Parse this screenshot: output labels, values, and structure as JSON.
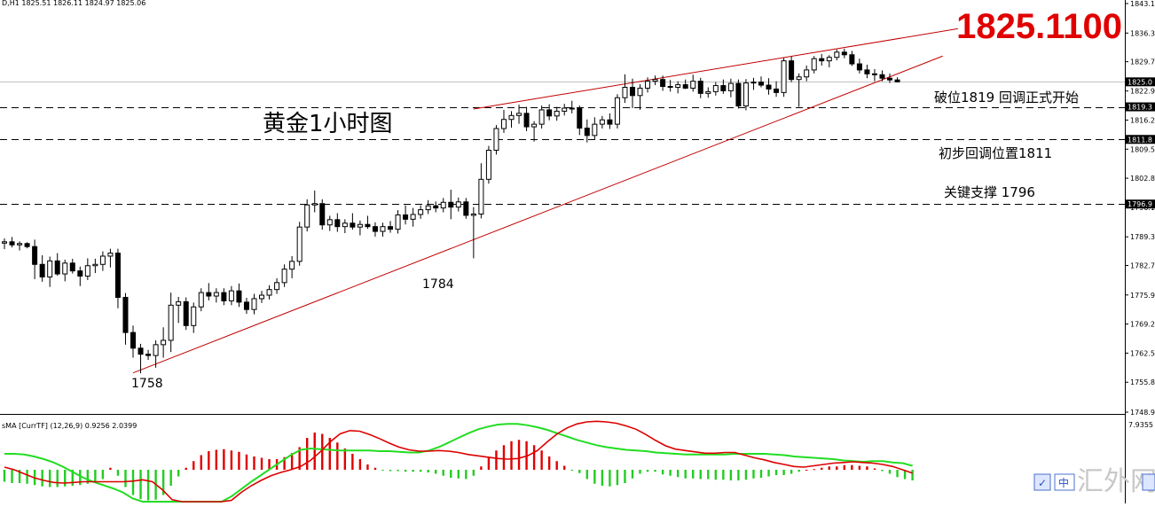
{
  "header": {
    "symbol_info": "D,H1  1825.51 1826.11 1824.97 1825.06",
    "current_price_big": "1825.1100",
    "indicator_label": "sMA [CurrTF] (12,26,9) 0.9256 2.0399"
  },
  "annotations": {
    "chart_title": "黄金1小时图",
    "break_label": "破位1819  回调正式开始",
    "pullback_label": "初步回调位置1811",
    "support_label": "关键支撑 1796",
    "low1_label": "1758",
    "low2_label": "1784"
  },
  "price_axis": {
    "ticks": [
      "1843.10",
      "1836.30",
      "1829.70",
      "1822.95",
      "1816.25",
      "1809.55",
      "1802.85",
      "1796.15",
      "1789.35",
      "1782.75",
      "1775.95",
      "1769.25",
      "1762.55",
      "1755.85",
      "1748.95"
    ],
    "current_label": "1825.0",
    "break_label": "1819.3",
    "pullback_label": "1811.8",
    "support_label": "1796.9"
  },
  "indicator_axis": {
    "top_label": "7.9355"
  },
  "watermark": {
    "text": "汇外网",
    "buttons": [
      "中"
    ]
  },
  "colors": {
    "trendline": "#c00000",
    "hist_up": "#e00000",
    "hist_down": "#22cc22",
    "signal_red": "#dd0000",
    "signal_green": "#22dd22",
    "big_price": "#e00000"
  },
  "chart_data": {
    "type": "candlestick",
    "timeframe": "H1",
    "ylim": [
      1748.95,
      1843.1
    ],
    "candles": [
      [
        1787.9,
        1789.0,
        1786.5,
        1788.2
      ],
      [
        1788.2,
        1789.3,
        1786.9,
        1787.5
      ],
      [
        1787.5,
        1788.3,
        1786.2,
        1787.8
      ],
      [
        1787.8,
        1788.1,
        1786.7,
        1787.1
      ],
      [
        1787.1,
        1788.7,
        1779.6,
        1783.0
      ],
      [
        1783.0,
        1785.1,
        1779.0,
        1780.1
      ],
      [
        1780.1,
        1784.8,
        1777.8,
        1783.8
      ],
      [
        1783.8,
        1785.6,
        1780.4,
        1780.8
      ],
      [
        1780.8,
        1784.1,
        1779.1,
        1783.3
      ],
      [
        1783.3,
        1784.3,
        1780.9,
        1781.5
      ],
      [
        1781.5,
        1782.5,
        1778.0,
        1780.3
      ],
      [
        1780.3,
        1784.4,
        1779.4,
        1782.7
      ],
      [
        1782.7,
        1784.3,
        1781.0,
        1783.0
      ],
      [
        1783.0,
        1786.0,
        1781.5,
        1784.9
      ],
      [
        1784.9,
        1786.6,
        1782.3,
        1785.6
      ],
      [
        1785.6,
        1786.6,
        1772.9,
        1775.4
      ],
      [
        1775.4,
        1776.4,
        1764.5,
        1767.3
      ],
      [
        1767.3,
        1768.9,
        1761.5,
        1763.7
      ],
      [
        1763.7,
        1764.7,
        1757.9,
        1762.3
      ],
      [
        1762.3,
        1763.3,
        1761.0,
        1762.0
      ],
      [
        1762.0,
        1765.5,
        1759.2,
        1764.5
      ],
      [
        1764.5,
        1768.5,
        1761.5,
        1765.5
      ],
      [
        1765.5,
        1776.5,
        1762.8,
        1773.6
      ],
      [
        1773.6,
        1775.5,
        1769.5,
        1774.4
      ],
      [
        1774.4,
        1775.4,
        1767.9,
        1768.9
      ],
      [
        1768.9,
        1774.2,
        1767.2,
        1773.2
      ],
      [
        1773.2,
        1777.5,
        1772.2,
        1776.5
      ],
      [
        1776.5,
        1778.7,
        1774.7,
        1775.7
      ],
      [
        1775.7,
        1777.5,
        1774.2,
        1776.5
      ],
      [
        1776.5,
        1777.5,
        1773.6,
        1774.6
      ],
      [
        1774.6,
        1778.0,
        1773.6,
        1776.9
      ],
      [
        1776.9,
        1778.6,
        1773.2,
        1774.3
      ],
      [
        1774.3,
        1775.3,
        1771.6,
        1772.6
      ],
      [
        1772.6,
        1776.2,
        1771.5,
        1775.1
      ],
      [
        1775.1,
        1776.9,
        1774.1,
        1775.9
      ],
      [
        1775.9,
        1778.2,
        1774.9,
        1777.2
      ],
      [
        1777.2,
        1779.8,
        1776.2,
        1778.8
      ],
      [
        1778.8,
        1783.0,
        1777.8,
        1781.9
      ],
      [
        1781.9,
        1784.9,
        1779.8,
        1783.7
      ],
      [
        1783.7,
        1792.8,
        1782.7,
        1791.6
      ],
      [
        1791.6,
        1798.0,
        1790.6,
        1796.7
      ],
      [
        1796.7,
        1800.0,
        1795.0,
        1797.0
      ],
      [
        1797.0,
        1798.0,
        1791.0,
        1792.1
      ],
      [
        1792.1,
        1794.2,
        1790.7,
        1793.3
      ],
      [
        1793.3,
        1794.8,
        1790.5,
        1791.7
      ],
      [
        1791.7,
        1793.4,
        1790.2,
        1792.5
      ],
      [
        1792.5,
        1794.8,
        1791.0,
        1791.6
      ],
      [
        1791.6,
        1793.1,
        1789.7,
        1792.2
      ],
      [
        1792.2,
        1794.2,
        1791.2,
        1791.7
      ],
      [
        1791.7,
        1792.7,
        1789.4,
        1790.6
      ],
      [
        1790.6,
        1792.6,
        1789.4,
        1791.7
      ],
      [
        1791.7,
        1793.0,
        1790.3,
        1791.1
      ],
      [
        1791.1,
        1795.5,
        1790.1,
        1794.4
      ],
      [
        1794.4,
        1796.6,
        1792.2,
        1793.4
      ],
      [
        1793.4,
        1796.0,
        1791.7,
        1794.5
      ],
      [
        1794.5,
        1796.6,
        1793.5,
        1795.6
      ],
      [
        1795.6,
        1797.8,
        1794.6,
        1796.5
      ],
      [
        1796.5,
        1797.5,
        1795.0,
        1796.0
      ],
      [
        1796.0,
        1798.3,
        1795.0,
        1797.3
      ],
      [
        1797.3,
        1800.2,
        1793.4,
        1796.2
      ],
      [
        1796.2,
        1798.4,
        1795.2,
        1797.4
      ],
      [
        1797.4,
        1798.3,
        1793.5,
        1794.3
      ],
      [
        1794.3,
        1796.2,
        1784.4,
        1794.6
      ],
      [
        1794.6,
        1806.3,
        1793.6,
        1802.6
      ],
      [
        1802.6,
        1810.3,
        1801.6,
        1809.3
      ],
      [
        1809.3,
        1815.1,
        1808.3,
        1814.3
      ],
      [
        1814.3,
        1818.6,
        1813.3,
        1816.4
      ],
      [
        1816.4,
        1818.3,
        1814.5,
        1817.3
      ],
      [
        1817.3,
        1819.8,
        1815.4,
        1817.8
      ],
      [
        1817.8,
        1819.3,
        1813.7,
        1814.7
      ],
      [
        1814.7,
        1816.0,
        1811.3,
        1815.3
      ],
      [
        1815.3,
        1819.6,
        1814.3,
        1818.6
      ],
      [
        1818.6,
        1819.9,
        1816.2,
        1817.2
      ],
      [
        1817.2,
        1819.3,
        1816.1,
        1818.3
      ],
      [
        1818.3,
        1820.0,
        1817.3,
        1819.0
      ],
      [
        1819.0,
        1820.7,
        1817.8,
        1818.9
      ],
      [
        1818.9,
        1819.6,
        1812.8,
        1814.4
      ],
      [
        1814.4,
        1816.4,
        1811.1,
        1812.7
      ],
      [
        1812.7,
        1816.9,
        1811.7,
        1815.3
      ],
      [
        1815.3,
        1817.2,
        1814.3,
        1816.3
      ],
      [
        1816.3,
        1817.8,
        1814.2,
        1815.3
      ],
      [
        1815.3,
        1822.2,
        1814.3,
        1821.4
      ],
      [
        1821.4,
        1826.8,
        1820.2,
        1823.8
      ],
      [
        1823.8,
        1825.8,
        1819.0,
        1821.9
      ],
      [
        1821.9,
        1824.5,
        1818.6,
        1823.6
      ],
      [
        1823.6,
        1826.1,
        1822.6,
        1825.2
      ],
      [
        1825.2,
        1826.5,
        1824.3,
        1825.6
      ],
      [
        1825.6,
        1826.5,
        1823.0,
        1824.0
      ],
      [
        1824.0,
        1825.5,
        1822.8,
        1823.8
      ],
      [
        1823.8,
        1825.2,
        1822.4,
        1824.4
      ],
      [
        1824.4,
        1825.6,
        1823.4,
        1823.6
      ],
      [
        1823.6,
        1826.7,
        1822.8,
        1825.2
      ],
      [
        1825.2,
        1826.0,
        1821.3,
        1822.4
      ],
      [
        1822.4,
        1823.8,
        1821.4,
        1822.8
      ],
      [
        1822.8,
        1825.0,
        1821.9,
        1824.2
      ],
      [
        1824.2,
        1825.6,
        1822.3,
        1823.0
      ],
      [
        1823.0,
        1825.8,
        1821.5,
        1824.7
      ],
      [
        1824.7,
        1825.6,
        1818.9,
        1819.5
      ],
      [
        1819.5,
        1825.7,
        1818.5,
        1824.8
      ],
      [
        1824.8,
        1826.0,
        1823.2,
        1825.0
      ],
      [
        1825.0,
        1826.3,
        1823.8,
        1824.3
      ],
      [
        1824.3,
        1825.9,
        1822.1,
        1823.4
      ],
      [
        1823.4,
        1825.2,
        1821.6,
        1822.6
      ],
      [
        1822.6,
        1830.6,
        1821.6,
        1829.9
      ],
      [
        1829.9,
        1830.9,
        1825.0,
        1825.6
      ],
      [
        1825.6,
        1827.0,
        1819.3,
        1826.2
      ],
      [
        1826.2,
        1828.8,
        1825.2,
        1827.8
      ],
      [
        1827.8,
        1831.0,
        1827.0,
        1830.4
      ],
      [
        1830.4,
        1831.5,
        1828.8,
        1829.9
      ],
      [
        1829.9,
        1831.2,
        1828.4,
        1830.7
      ],
      [
        1830.7,
        1832.5,
        1830.0,
        1831.9
      ],
      [
        1831.9,
        1832.7,
        1830.5,
        1831.3
      ],
      [
        1831.3,
        1832.2,
        1828.7,
        1829.2
      ],
      [
        1829.2,
        1830.4,
        1827.0,
        1827.8
      ],
      [
        1827.8,
        1829.0,
        1825.9,
        1826.9
      ],
      [
        1826.9,
        1828.0,
        1825.2,
        1826.7
      ],
      [
        1826.7,
        1827.7,
        1825.2,
        1825.9
      ],
      [
        1825.9,
        1827.0,
        1824.8,
        1825.5
      ],
      [
        1825.5,
        1826.1,
        1824.9,
        1825.06
      ]
    ],
    "levels": [
      1819.3,
      1811.8,
      1796.9
    ],
    "current_price": 1825.06,
    "trendlines": [
      {
        "from": [
          17,
          1758.0
        ],
        "to": [
          124,
          1831.0
        ]
      },
      {
        "from": [
          62,
          1818.8
        ],
        "to": [
          126,
          1837.3
        ]
      }
    ],
    "indicator": {
      "type": "osma",
      "params": [
        12,
        26,
        9
      ],
      "ylim": [
        -8,
        8
      ],
      "histogram": [
        -1.8,
        -2.0,
        -2.0,
        -2.1,
        -2.3,
        -2.5,
        -2.6,
        -2.6,
        -2.5,
        -2.4,
        -2.3,
        -2.1,
        -1.9,
        -1.4,
        0.3,
        -0.9,
        -2.6,
        -3.8,
        -4.4,
        -4.6,
        -4.5,
        -3.8,
        -2.4,
        -1.0,
        0.3,
        1.3,
        2.2,
        2.8,
        3.0,
        3.1,
        2.9,
        2.7,
        2.3,
        2.0,
        1.8,
        1.6,
        1.6,
        1.9,
        2.5,
        3.4,
        4.8,
        5.6,
        5.4,
        4.8,
        4.1,
        3.2,
        2.4,
        1.6,
        0.8,
        0.3,
        -0.1,
        -0.2,
        -0.2,
        -0.3,
        -0.3,
        -0.3,
        -0.4,
        -0.6,
        -0.9,
        -1.2,
        -1.3,
        -1.4,
        -0.9,
        0.5,
        1.8,
        2.9,
        3.7,
        4.3,
        4.5,
        4.3,
        3.7,
        2.9,
        2.0,
        1.3,
        0.6,
        -0.1,
        -0.5,
        -1.4,
        -2.1,
        -2.4,
        -2.5,
        -2.3,
        -2.0,
        -1.3,
        -0.6,
        -0.3,
        -0.3,
        -0.7,
        -0.9,
        -1.1,
        -1.3,
        -1.3,
        -1.4,
        -1.4,
        -1.5,
        -1.5,
        -1.6,
        -1.6,
        -1.5,
        -1.3,
        -1.2,
        -1.0,
        -0.8,
        -0.8,
        -0.6,
        -0.3,
        0.0,
        0.1,
        0.3,
        0.5,
        0.5,
        0.7,
        0.7,
        0.6,
        0.5,
        0.2,
        -0.2,
        -0.6,
        -1.1,
        -1.4,
        -1.6
      ],
      "line_red": [
        0.4,
        0.0,
        -0.6,
        -1.2,
        -1.6,
        -1.9,
        -2.0,
        -1.9,
        -1.8,
        -1.8,
        -1.8,
        -1.8,
        -1.8,
        -1.7,
        -1.5,
        -1.8,
        -3.0,
        -4.5,
        -5.9,
        -6.6,
        -6.8,
        -6.6,
        -5.8,
        -4.6,
        -3.4,
        -2.4,
        -1.6,
        -0.9,
        -0.4,
        0.0,
        0.5,
        1.4,
        2.7,
        4.2,
        5.4,
        5.9,
        5.8,
        5.3,
        4.7,
        4.0,
        3.4,
        3.0,
        2.8,
        2.8,
        2.9,
        2.8,
        2.6,
        2.3,
        2.1,
        1.9,
        1.7,
        1.6,
        1.7,
        2.1,
        2.9,
        4.2,
        5.4,
        6.3,
        6.9,
        7.2,
        7.3,
        7.2,
        7.0,
        6.6,
        6.1,
        5.3,
        4.4,
        3.6,
        3.1,
        2.9,
        2.7,
        2.5,
        2.5,
        2.6,
        2.6,
        2.2,
        1.8,
        1.5,
        1.1,
        0.8,
        0.5,
        0.4,
        0.6,
        0.8,
        1.0,
        1.1,
        1.2,
        1.1,
        1.0,
        0.8,
        0.5,
        0.0,
        -0.5
      ],
      "line_green": [
        2.4,
        2.4,
        2.3,
        2.0,
        1.6,
        1.1,
        0.4,
        -0.4,
        -1.2,
        -1.8,
        -2.3,
        -2.8,
        -3.4,
        -4.3,
        -5.5,
        -6.6,
        -7.5,
        -8.0,
        -8.0,
        -7.6,
        -7.0,
        -6.2,
        -5.2,
        -4.0,
        -2.9,
        -1.8,
        -0.8,
        0.2,
        1.2,
        2.2,
        3.0,
        3.2,
        3.1,
        3.0,
        2.9,
        2.9,
        2.9,
        2.9,
        2.8,
        2.8,
        2.7,
        2.6,
        2.6,
        2.9,
        3.4,
        4.1,
        4.8,
        5.5,
        6.1,
        6.5,
        6.8,
        6.9,
        6.9,
        6.7,
        6.4,
        6.0,
        5.5,
        5.0,
        4.5,
        4.1,
        3.7,
        3.4,
        3.2,
        3.0,
        2.9,
        2.8,
        2.6,
        2.5,
        2.4,
        2.3,
        2.3,
        2.3,
        2.3,
        2.3,
        2.4,
        2.4,
        2.4,
        2.4,
        2.3,
        2.2,
        2.0,
        1.9,
        1.8,
        1.7,
        1.6,
        1.4,
        1.3,
        1.2,
        1.3,
        1.3,
        1.1,
        1.0,
        0.6
      ]
    }
  }
}
